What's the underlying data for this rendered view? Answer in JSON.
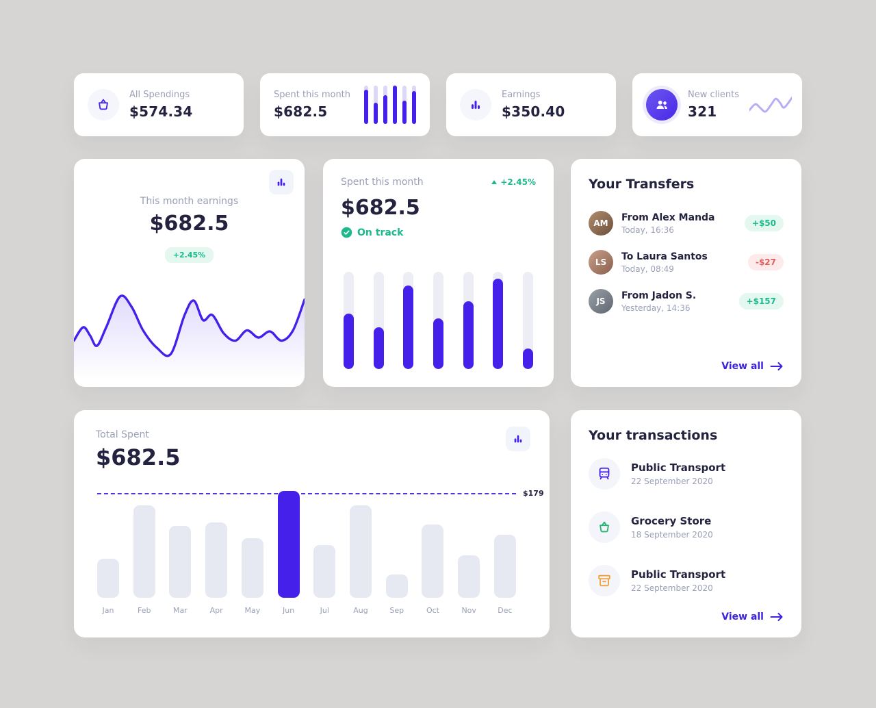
{
  "colors": {
    "primary": "#4520ea",
    "positive": "#1db98c",
    "negative": "#e25c5c",
    "link": "#3b23e0"
  },
  "stat_cards": [
    {
      "icon": "basket-icon",
      "label": "All Spendings",
      "value": "$574.34"
    },
    {
      "icon": "mini-bar-chart",
      "label": "Spent this month",
      "value": "$682.5",
      "spark_bars": [
        0.9,
        0.55,
        0.75,
        1.0,
        0.6,
        0.85
      ]
    },
    {
      "icon": "bar-chart-icon",
      "label": "Earnings",
      "value": "$350.40"
    },
    {
      "icon": "clients-icon",
      "label": "New clients",
      "value": "321",
      "spark_line": [
        [
          0,
          70
        ],
        [
          14,
          48
        ],
        [
          26,
          62
        ],
        [
          38,
          75
        ],
        [
          52,
          48
        ],
        [
          62,
          28
        ],
        [
          72,
          42
        ],
        [
          82,
          60
        ],
        [
          100,
          25
        ]
      ]
    }
  ],
  "earnings_card": {
    "title": "This month earnings",
    "value": "$682.5",
    "change": "+2.45%",
    "chart_data": {
      "type": "line",
      "points": [
        [
          0,
          55
        ],
        [
          4,
          42
        ],
        [
          7,
          50
        ],
        [
          10,
          60
        ],
        [
          14,
          42
        ],
        [
          20,
          12
        ],
        [
          25,
          22
        ],
        [
          30,
          45
        ],
        [
          36,
          62
        ],
        [
          42,
          68
        ],
        [
          48,
          30
        ],
        [
          52,
          16
        ],
        [
          56,
          35
        ],
        [
          60,
          30
        ],
        [
          65,
          48
        ],
        [
          70,
          55
        ],
        [
          75,
          45
        ],
        [
          80,
          52
        ],
        [
          85,
          46
        ],
        [
          90,
          55
        ],
        [
          95,
          45
        ],
        [
          100,
          15
        ]
      ],
      "line_color": "#4520ea"
    }
  },
  "spent_card": {
    "title": "Spent this month",
    "value": "$682.5",
    "change": "+2.45%",
    "status": "On track",
    "chart_data": {
      "type": "bar",
      "values": [
        57,
        43,
        86,
        52,
        70,
        93,
        21
      ],
      "ylim": [
        0,
        100
      ]
    }
  },
  "transfers": {
    "title": "Your Transfers",
    "view_all": "View all",
    "items": [
      {
        "name": "From Alex Manda",
        "time": "Today, 16:36",
        "amount": "+$50",
        "direction": "positive",
        "avatar_initials": "AM"
      },
      {
        "name": "To Laura Santos",
        "time": "Today, 08:49",
        "amount": "-$27",
        "direction": "negative",
        "avatar_initials": "LS"
      },
      {
        "name": "From Jadon S.",
        "time": "Yesterday, 14:36",
        "amount": "+$157",
        "direction": "positive",
        "avatar_initials": "JS"
      }
    ]
  },
  "total_spent": {
    "label": "Total Spent",
    "value": "$682.5",
    "chart_data": {
      "type": "bar",
      "categories": [
        "Jan",
        "Feb",
        "Mar",
        "Apr",
        "May",
        "Jun",
        "Jul",
        "Aug",
        "Sep",
        "Oct",
        "Nov",
        "Dec"
      ],
      "values": [
        68,
        160,
        125,
        130,
        103,
        185,
        91,
        160,
        40,
        127,
        74,
        109
      ],
      "highlighted": "Jun",
      "threshold": 179,
      "threshold_label": "$179",
      "max_value": 185
    }
  },
  "transactions": {
    "title": "Your transactions",
    "view_all": "View all",
    "items": [
      {
        "icon": "bus-icon",
        "icon_color": "#4520ea",
        "title": "Public Transport",
        "date": "22 September 2020"
      },
      {
        "icon": "grocery-basket-icon",
        "icon_color": "#23b573",
        "title": "Grocery Store",
        "date": "18 September 2020"
      },
      {
        "icon": "archive-icon",
        "icon_color": "#f0a13c",
        "title": "Public Transport",
        "date": "22 September 2020"
      }
    ]
  }
}
